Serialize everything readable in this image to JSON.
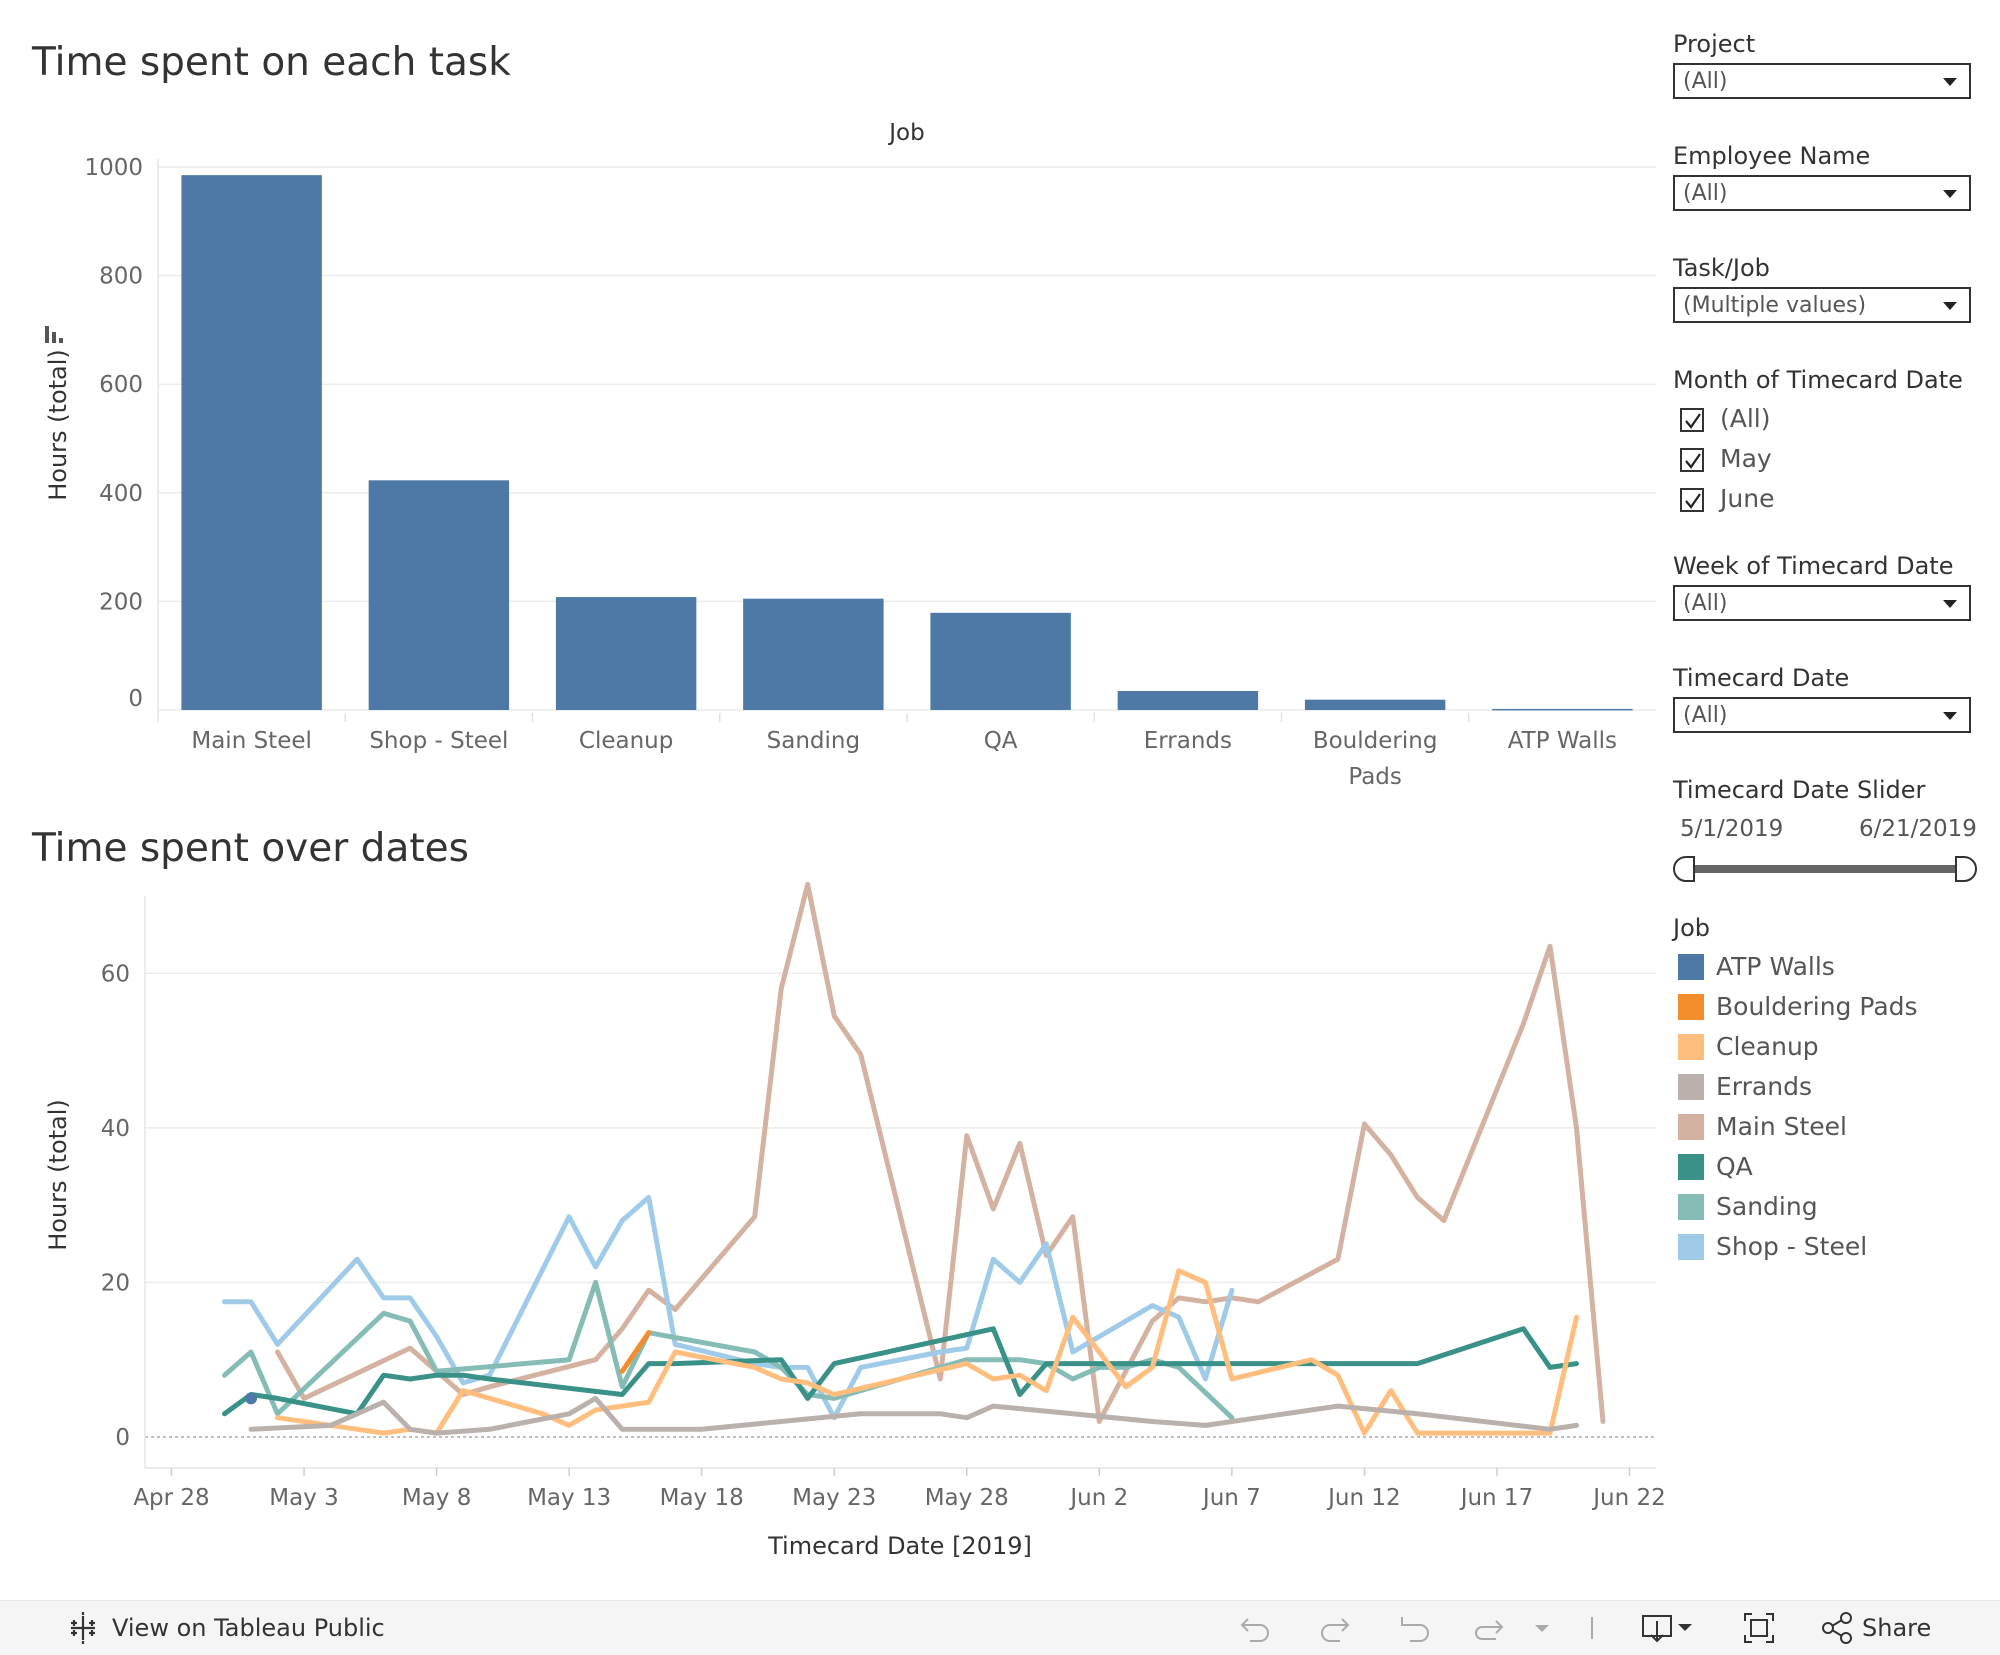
{
  "bar_section": {
    "title": "Time spent on each task",
    "header": "Job",
    "ylabel": "Hours (total)",
    "yticks": [
      "0",
      "200",
      "400",
      "600",
      "800",
      "1000"
    ]
  },
  "line_section": {
    "title": "Time spent over dates",
    "ylabel": "Hours (total)",
    "xlabel": "Timecard Date [2019]",
    "yticks": [
      "0",
      "20",
      "40",
      "60"
    ],
    "xticks": [
      "Apr 28",
      "May 3",
      "May 8",
      "May 13",
      "May 18",
      "May 23",
      "May 28",
      "Jun 2",
      "Jun 7",
      "Jun 12",
      "Jun 17",
      "Jun 22"
    ]
  },
  "filters": {
    "project": {
      "label": "Project",
      "value": "(All)"
    },
    "employee": {
      "label": "Employee Name",
      "value": "(All)"
    },
    "task": {
      "label": "Task/Job",
      "value": "(Multiple values)"
    },
    "month": {
      "label": "Month of Timecard Date",
      "options": [
        "(All)",
        "May",
        "June"
      ]
    },
    "week": {
      "label": "Week of Timecard Date",
      "value": "(All)"
    },
    "date": {
      "label": "Timecard Date",
      "value": "(All)"
    },
    "slider": {
      "label": "Timecard Date Slider",
      "start": "5/1/2019",
      "end": "6/21/2019"
    }
  },
  "legend": {
    "title": "Job",
    "items": [
      {
        "label": "ATP Walls",
        "color": "#4e79a7"
      },
      {
        "label": "Bouldering Pads",
        "color": "#f28e2b"
      },
      {
        "label": "Cleanup",
        "color": "#ffbe7d"
      },
      {
        "label": "Errands",
        "color": "#bab0ac"
      },
      {
        "label": "Main Steel",
        "color": "#d4b2a1"
      },
      {
        "label": "QA",
        "color": "#3a9188"
      },
      {
        "label": "Sanding",
        "color": "#86bcb6"
      },
      {
        "label": "Shop - Steel",
        "color": "#a0cbe8"
      }
    ]
  },
  "footer": {
    "view_label": "View on Tableau Public",
    "share_label": "Share"
  },
  "chart_data": [
    {
      "type": "bar",
      "title": "Time spent on each task",
      "xlabel": "Job",
      "ylabel": "Hours (total)",
      "ylim": [
        0,
        1000
      ],
      "categories": [
        "Main Steel",
        "Shop - Steel",
        "Cleanup",
        "Sanding",
        "QA",
        "Errands",
        "Bouldering Pads",
        "ATP Walls"
      ],
      "category_lines": [
        [
          "Main Steel"
        ],
        [
          "Shop - Steel"
        ],
        [
          "Cleanup"
        ],
        [
          "Sanding"
        ],
        [
          "QA"
        ],
        [
          "Errands"
        ],
        [
          "Bouldering",
          "Pads"
        ],
        [
          "ATP Walls"
        ]
      ],
      "values": [
        985,
        423,
        208,
        205,
        179,
        35,
        19,
        2
      ],
      "color": "#4e79a7",
      "grid": true
    },
    {
      "type": "line",
      "title": "Time spent over dates",
      "xlabel": "Timecard Date [2019]",
      "ylabel": "Hours (total)",
      "ylim": [
        0,
        70
      ],
      "xlim": [
        "2019-04-27",
        "2019-06-23"
      ],
      "grid": true,
      "series": [
        {
          "name": "Main Steel",
          "color": "#d4b2a1",
          "points": [
            [
              "2019-05-02",
              11
            ],
            [
              "2019-05-03",
              5
            ],
            [
              "2019-05-07",
              11.5
            ],
            [
              "2019-05-08",
              8.5
            ],
            [
              "2019-05-09",
              5.5
            ],
            [
              "2019-05-10",
              6.5
            ],
            [
              "2019-05-14",
              10
            ],
            [
              "2019-05-15",
              14
            ],
            [
              "2019-05-16",
              19
            ],
            [
              "2019-05-17",
              16.5
            ],
            [
              "2019-05-20",
              28.5
            ],
            [
              "2019-05-21",
              58
            ],
            [
              "2019-05-22",
              71.5
            ],
            [
              "2019-05-23",
              54.5
            ],
            [
              "2019-05-24",
              49.5
            ],
            [
              "2019-05-27",
              7.5
            ],
            [
              "2019-05-28",
              39
            ],
            [
              "2019-05-29",
              29.5
            ],
            [
              "2019-05-30",
              38
            ],
            [
              "2019-05-31",
              23.5
            ],
            [
              "2019-06-01",
              28.5
            ],
            [
              "2019-06-02",
              2
            ],
            [
              "2019-06-04",
              15
            ],
            [
              "2019-06-05",
              18
            ],
            [
              "2019-06-06",
              17.5
            ],
            [
              "2019-06-07",
              18
            ],
            [
              "2019-06-08",
              17.5
            ],
            [
              "2019-06-11",
              23
            ],
            [
              "2019-06-12",
              40.5
            ],
            [
              "2019-06-13",
              36.5
            ],
            [
              "2019-06-14",
              31
            ],
            [
              "2019-06-15",
              28
            ],
            [
              "2019-06-18",
              53.5
            ],
            [
              "2019-06-19",
              63.5
            ],
            [
              "2019-06-20",
              40
            ],
            [
              "2019-06-21",
              2
            ]
          ]
        },
        {
          "name": "Shop - Steel",
          "color": "#a0cbe8",
          "points": [
            [
              "2019-04-30",
              17.5
            ],
            [
              "2019-05-01",
              17.5
            ],
            [
              "2019-05-02",
              12
            ],
            [
              "2019-05-05",
              23
            ],
            [
              "2019-05-06",
              18
            ],
            [
              "2019-05-07",
              18
            ],
            [
              "2019-05-08",
              13
            ],
            [
              "2019-05-09",
              7
            ],
            [
              "2019-05-10",
              8
            ],
            [
              "2019-05-13",
              28.5
            ],
            [
              "2019-05-14",
              22
            ],
            [
              "2019-05-15",
              28
            ],
            [
              "2019-05-16",
              31
            ],
            [
              "2019-05-17",
              12
            ],
            [
              "2019-05-20",
              9.5
            ],
            [
              "2019-05-21",
              9
            ],
            [
              "2019-05-22",
              9
            ],
            [
              "2019-05-23",
              2.5
            ],
            [
              "2019-05-24",
              9
            ],
            [
              "2019-05-27",
              11
            ],
            [
              "2019-05-28",
              11.5
            ],
            [
              "2019-05-29",
              23
            ],
            [
              "2019-05-30",
              20
            ],
            [
              "2019-05-31",
              25
            ],
            [
              "2019-06-01",
              11
            ],
            [
              "2019-06-04",
              17
            ],
            [
              "2019-06-05",
              15.5
            ],
            [
              "2019-06-06",
              7.5
            ],
            [
              "2019-06-07",
              19
            ]
          ]
        },
        {
          "name": "Sanding",
          "color": "#86bcb6",
          "points": [
            [
              "2019-04-30",
              8
            ],
            [
              "2019-05-01",
              11
            ],
            [
              "2019-05-02",
              3
            ],
            [
              "2019-05-06",
              16
            ],
            [
              "2019-05-07",
              15
            ],
            [
              "2019-05-08",
              8.5
            ],
            [
              "2019-05-13",
              10
            ],
            [
              "2019-05-14",
              20
            ],
            [
              "2019-05-15",
              6.5
            ],
            [
              "2019-05-16",
              13.5
            ],
            [
              "2019-05-20",
              11
            ],
            [
              "2019-05-21",
              9
            ],
            [
              "2019-05-22",
              5.5
            ],
            [
              "2019-05-23",
              5
            ],
            [
              "2019-05-24",
              6
            ],
            [
              "2019-05-28",
              10
            ],
            [
              "2019-05-30",
              10
            ],
            [
              "2019-05-31",
              9.5
            ],
            [
              "2019-06-01",
              7.5
            ],
            [
              "2019-06-02",
              9
            ],
            [
              "2019-06-03",
              9
            ],
            [
              "2019-06-04",
              10
            ],
            [
              "2019-06-05",
              9
            ],
            [
              "2019-06-07",
              2.5
            ]
          ]
        },
        {
          "name": "QA",
          "color": "#3a9188",
          "points": [
            [
              "2019-04-30",
              3
            ],
            [
              "2019-05-01",
              5.5
            ],
            [
              "2019-05-02",
              5
            ],
            [
              "2019-05-05",
              3
            ],
            [
              "2019-05-06",
              8
            ],
            [
              "2019-05-07",
              7.5
            ],
            [
              "2019-05-08",
              8
            ],
            [
              "2019-05-09",
              8
            ],
            [
              "2019-05-10",
              7.5
            ],
            [
              "2019-05-15",
              5.5
            ],
            [
              "2019-05-16",
              9.5
            ],
            [
              "2019-05-17",
              9.5
            ],
            [
              "2019-05-21",
              10
            ],
            [
              "2019-05-22",
              5
            ],
            [
              "2019-05-23",
              9.5
            ],
            [
              "2019-05-27",
              12.5
            ],
            [
              "2019-05-29",
              14
            ],
            [
              "2019-05-30",
              5.5
            ],
            [
              "2019-05-31",
              9.5
            ],
            [
              "2019-06-05",
              9.5
            ],
            [
              "2019-06-07",
              9.5
            ],
            [
              "2019-06-10",
              9.5
            ],
            [
              "2019-06-14",
              9.5
            ],
            [
              "2019-06-18",
              14
            ],
            [
              "2019-06-19",
              9
            ],
            [
              "2019-06-20",
              9.5
            ]
          ]
        },
        {
          "name": "Cleanup",
          "color": "#ffbe7d",
          "points": [
            [
              "2019-05-02",
              2.5
            ],
            [
              "2019-05-06",
              0.5
            ],
            [
              "2019-05-07",
              1
            ],
            [
              "2019-05-08",
              0.5
            ],
            [
              "2019-05-09",
              6
            ],
            [
              "2019-05-12",
              3
            ],
            [
              "2019-05-13",
              1.5
            ],
            [
              "2019-05-14",
              3.5
            ],
            [
              "2019-05-16",
              4.5
            ],
            [
              "2019-05-17",
              11
            ],
            [
              "2019-05-20",
              9
            ],
            [
              "2019-05-21",
              7.5
            ],
            [
              "2019-05-22",
              7
            ],
            [
              "2019-05-23",
              5.5
            ],
            [
              "2019-05-28",
              9.5
            ],
            [
              "2019-05-29",
              7.5
            ],
            [
              "2019-05-30",
              8
            ],
            [
              "2019-05-31",
              6
            ],
            [
              "2019-06-01",
              15.5
            ],
            [
              "2019-06-02",
              11
            ],
            [
              "2019-06-03",
              6.5
            ],
            [
              "2019-06-04",
              9
            ],
            [
              "2019-06-05",
              21.5
            ],
            [
              "2019-06-06",
              20
            ],
            [
              "2019-06-07",
              7.5
            ],
            [
              "2019-06-10",
              10
            ],
            [
              "2019-06-11",
              8
            ],
            [
              "2019-06-12",
              0.5
            ],
            [
              "2019-06-13",
              6
            ],
            [
              "2019-06-14",
              0.5
            ],
            [
              "2019-06-15",
              0.5
            ],
            [
              "2019-06-18",
              0.5
            ],
            [
              "2019-06-19",
              0.5
            ],
            [
              "2019-06-20",
              15.5
            ]
          ]
        },
        {
          "name": "Errands",
          "color": "#bab0ac",
          "points": [
            [
              "2019-05-01",
              1
            ],
            [
              "2019-05-04",
              1.5
            ],
            [
              "2019-05-06",
              4.5
            ],
            [
              "2019-05-07",
              1
            ],
            [
              "2019-05-08",
              0.5
            ],
            [
              "2019-05-10",
              1
            ],
            [
              "2019-05-13",
              3
            ],
            [
              "2019-05-14",
              5
            ],
            [
              "2019-05-15",
              1
            ],
            [
              "2019-05-16",
              1
            ],
            [
              "2019-05-18",
              1
            ],
            [
              "2019-05-24",
              3
            ],
            [
              "2019-05-27",
              3
            ],
            [
              "2019-05-28",
              2.5
            ],
            [
              "2019-05-29",
              4
            ],
            [
              "2019-06-01",
              3
            ],
            [
              "2019-06-04",
              2
            ],
            [
              "2019-06-06",
              1.5
            ],
            [
              "2019-06-11",
              4
            ],
            [
              "2019-06-14",
              3
            ],
            [
              "2019-06-19",
              1
            ],
            [
              "2019-06-20",
              1.5
            ]
          ]
        },
        {
          "name": "Bouldering Pads",
          "color": "#f28e2b",
          "points": [
            [
              "2019-05-15",
              8.5
            ],
            [
              "2019-05-16",
              13.5
            ]
          ]
        },
        {
          "name": "ATP Walls",
          "color": "#4e79a7",
          "points": [
            [
              "2019-05-01",
              5
            ]
          ]
        }
      ]
    }
  ]
}
